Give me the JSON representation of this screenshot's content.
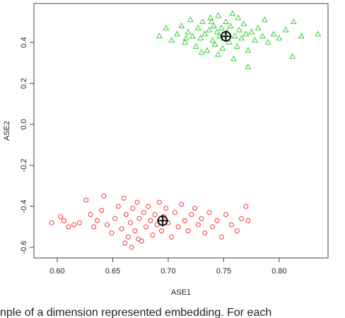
{
  "chart_data": {
    "type": "scatter",
    "xlabel": "ASE1",
    "ylabel": "ASE2",
    "xlim": [
      0.579,
      0.844
    ],
    "ylim": [
      -0.652,
      0.59
    ],
    "xticks": [
      {
        "value": 0.6,
        "label": "0.60"
      },
      {
        "value": 0.65,
        "label": "0.65"
      },
      {
        "value": 0.7,
        "label": "0.70"
      },
      {
        "value": 0.75,
        "label": "0.75"
      },
      {
        "value": 0.8,
        "label": "0.80"
      }
    ],
    "yticks": [
      0.4,
      0.2,
      {
        "value": 0,
        "label": "0.0"
      },
      -0.2,
      -0.4,
      -0.6
    ],
    "caption": "nple of a dimension represented embedding. For each",
    "series": [
      {
        "color": "#22cc22",
        "marker": "triangle",
        "x": [
          0.692,
          0.698,
          0.703,
          0.708,
          0.712,
          0.715,
          0.718,
          0.72,
          0.722,
          0.725,
          0.727,
          0.729,
          0.731,
          0.733,
          0.735,
          0.737,
          0.738,
          0.74,
          0.741,
          0.742,
          0.744,
          0.745,
          0.746,
          0.748,
          0.749,
          0.75,
          0.752,
          0.753,
          0.755,
          0.756,
          0.758,
          0.76,
          0.762,
          0.764,
          0.766,
          0.768,
          0.77,
          0.772,
          0.775,
          0.778,
          0.781,
          0.785,
          0.79,
          0.795,
          0.8,
          0.806,
          0.812,
          0.82,
          0.835,
          0.772,
          0.759,
          0.745,
          0.73,
          0.716,
          0.763,
          0.739,
          0.787,
          0.813
        ],
        "values": [
          0.43,
          0.47,
          0.41,
          0.44,
          0.48,
          0.4,
          0.45,
          0.51,
          0.43,
          0.38,
          0.47,
          0.42,
          0.5,
          0.44,
          0.36,
          0.46,
          0.52,
          0.41,
          0.48,
          0.39,
          0.45,
          0.53,
          0.43,
          0.47,
          0.37,
          0.42,
          0.5,
          0.45,
          0.4,
          0.48,
          0.54,
          0.43,
          0.38,
          0.46,
          0.42,
          0.49,
          0.44,
          0.36,
          0.45,
          0.41,
          0.47,
          0.43,
          0.4,
          0.44,
          0.42,
          0.46,
          0.33,
          0.43,
          0.44,
          0.28,
          0.32,
          0.34,
          0.35,
          0.42,
          0.52,
          0.5,
          0.51,
          0.5
        ]
      },
      {
        "color": "#ee2222",
        "marker": "circle",
        "x": [
          0.595,
          0.603,
          0.606,
          0.61,
          0.615,
          0.62,
          0.626,
          0.63,
          0.633,
          0.636,
          0.64,
          0.642,
          0.645,
          0.649,
          0.652,
          0.655,
          0.658,
          0.66,
          0.662,
          0.664,
          0.666,
          0.668,
          0.67,
          0.672,
          0.674,
          0.676,
          0.678,
          0.68,
          0.682,
          0.684,
          0.686,
          0.688,
          0.69,
          0.692,
          0.694,
          0.696,
          0.698,
          0.7,
          0.703,
          0.706,
          0.709,
          0.712,
          0.715,
          0.718,
          0.721,
          0.724,
          0.727,
          0.73,
          0.733,
          0.737,
          0.74,
          0.744,
          0.748,
          0.752,
          0.757,
          0.762,
          0.766,
          0.77,
          0.772,
          0.661,
          0.667,
          0.673
        ],
        "values": [
          -0.48,
          -0.45,
          -0.47,
          -0.5,
          -0.49,
          -0.48,
          -0.37,
          -0.44,
          -0.5,
          -0.47,
          -0.42,
          -0.35,
          -0.49,
          -0.53,
          -0.46,
          -0.4,
          -0.51,
          -0.36,
          -0.44,
          -0.55,
          -0.48,
          -0.41,
          -0.52,
          -0.38,
          -0.46,
          -0.57,
          -0.43,
          -0.5,
          -0.4,
          -0.47,
          -0.54,
          -0.44,
          -0.49,
          -0.38,
          -0.52,
          -0.45,
          -0.41,
          -0.48,
          -0.55,
          -0.43,
          -0.5,
          -0.39,
          -0.47,
          -0.52,
          -0.44,
          -0.41,
          -0.49,
          -0.46,
          -0.53,
          -0.43,
          -0.5,
          -0.47,
          -0.55,
          -0.44,
          -0.49,
          -0.52,
          -0.46,
          -0.4,
          -0.47,
          -0.58,
          -0.6,
          -0.56
        ]
      },
      {
        "color": "#000000",
        "marker": "centroid",
        "x": [
          0.752,
          0.695
        ],
        "values": [
          0.43,
          -0.47
        ]
      }
    ]
  }
}
